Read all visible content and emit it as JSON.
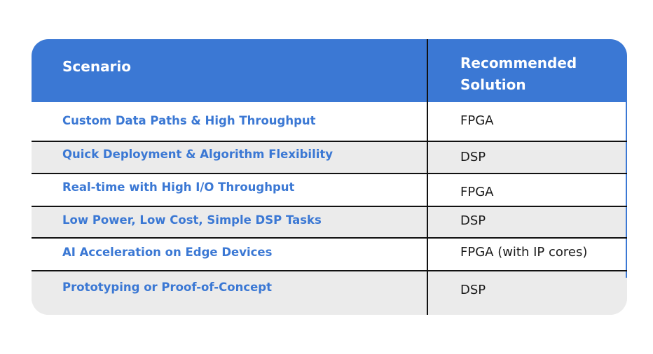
{
  "table": {
    "headers": {
      "scenario": "Scenario",
      "solution_line1": "Recommended",
      "solution_line2": "Solution"
    },
    "rows": [
      {
        "scenario": "Custom Data Paths & High Throughput",
        "solution": "FPGA"
      },
      {
        "scenario": "Quick Deployment & Algorithm Flexibility",
        "solution": "DSP"
      },
      {
        "scenario": "Real-time with High I/O Throughput",
        "solution": "FPGA"
      },
      {
        "scenario": "Low Power, Low Cost, Simple DSP Tasks",
        "solution": "DSP"
      },
      {
        "scenario": "AI Acceleration on Edge Devices",
        "solution": "FPGA (with IP cores)"
      },
      {
        "scenario": "Prototyping or Proof-of-Concept",
        "solution": "DSP"
      }
    ]
  },
  "colors": {
    "header_bg": "#3b78d4",
    "scenario_text": "#3b78d4",
    "row_alt_bg": "#ebebeb"
  }
}
